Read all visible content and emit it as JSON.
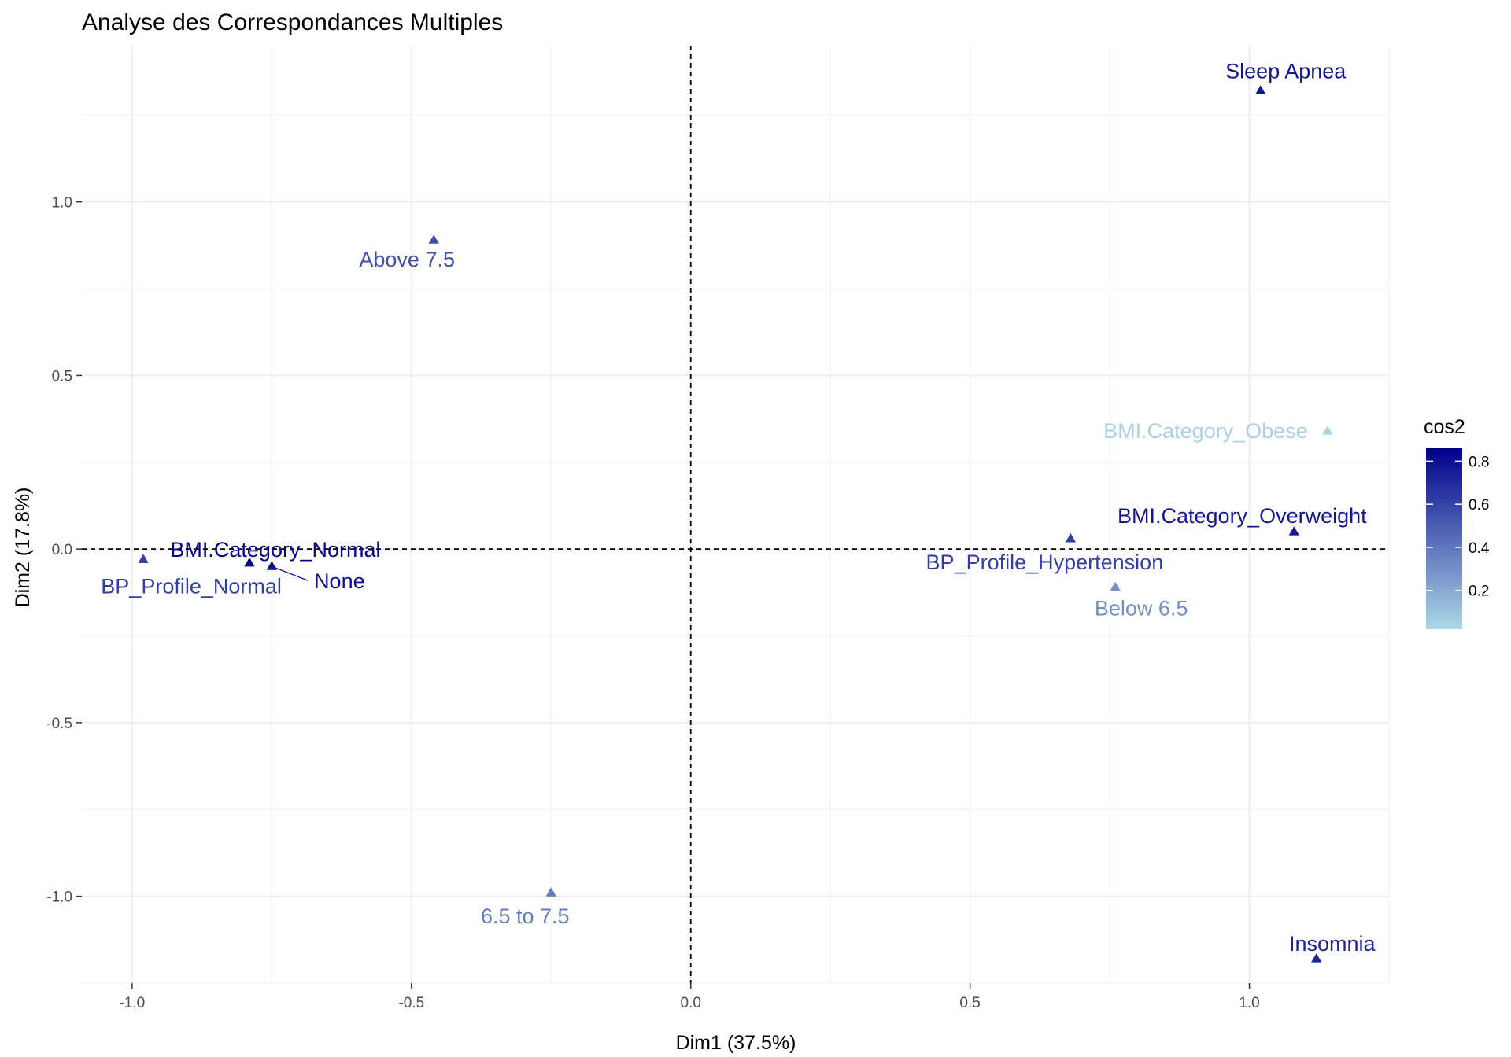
{
  "chart_data": {
    "type": "scatter",
    "title": "Analyse des Correspondances Multiples",
    "xlabel": "Dim1 (37.5%)",
    "ylabel": "Dim2 (17.8%)",
    "xlim": [
      -1.09,
      1.25
    ],
    "ylim": [
      -1.25,
      1.45
    ],
    "x_ticks": [
      -1.0,
      -0.5,
      0.0,
      0.5,
      1.0
    ],
    "x_tick_labels": [
      "-1.0",
      "-0.5",
      "0.0",
      "0.5",
      "1.0"
    ],
    "y_ticks": [
      -1.0,
      -0.5,
      0.0,
      0.5,
      1.0
    ],
    "y_tick_labels": [
      "-1.0",
      "-0.5",
      "0.0",
      "0.5",
      "1.0"
    ],
    "grid": true,
    "reference_lines": {
      "x": 0,
      "y": 0,
      "style": "dashed"
    },
    "marker": "triangle",
    "points": [
      {
        "label": "Sleep Apnea",
        "x": 1.02,
        "y": 1.32,
        "cos2": 0.78
      },
      {
        "label": "Above 7.5",
        "x": -0.46,
        "y": 0.89,
        "cos2": 0.55
      },
      {
        "label": "BMI.Category_Obese",
        "x": 1.14,
        "y": 0.34,
        "cos2": 0.04
      },
      {
        "label": "BMI.Category_Overweight",
        "x": 1.08,
        "y": 0.05,
        "cos2": 0.77
      },
      {
        "label": "BP_Profile_Hypertension",
        "x": 0.68,
        "y": 0.03,
        "cos2": 0.62
      },
      {
        "label": "Below 6.5",
        "x": 0.76,
        "y": -0.11,
        "cos2": 0.3
      },
      {
        "label": "BMI.Category_Normal",
        "x": -0.79,
        "y": -0.04,
        "cos2": 0.85
      },
      {
        "label": "None",
        "x": -0.75,
        "y": -0.05,
        "cos2": 0.8
      },
      {
        "label": "BP_Profile_Normal",
        "x": -0.98,
        "y": -0.03,
        "cos2": 0.62
      },
      {
        "label": "6.5 to 7.5",
        "x": -0.25,
        "y": -0.99,
        "cos2": 0.38
      },
      {
        "label": "Insomnia",
        "x": 1.12,
        "y": -1.18,
        "cos2": 0.72
      }
    ],
    "legend": {
      "title": "cos2",
      "placement": "right",
      "ticks": [
        0.2,
        0.4,
        0.6,
        0.8
      ],
      "tick_labels": [
        "0.2",
        "0.4",
        "0.6",
        "0.8"
      ],
      "range": [
        0.02,
        0.86
      ],
      "color_low": "#ADD8E6",
      "color_high": "#00008B"
    }
  }
}
